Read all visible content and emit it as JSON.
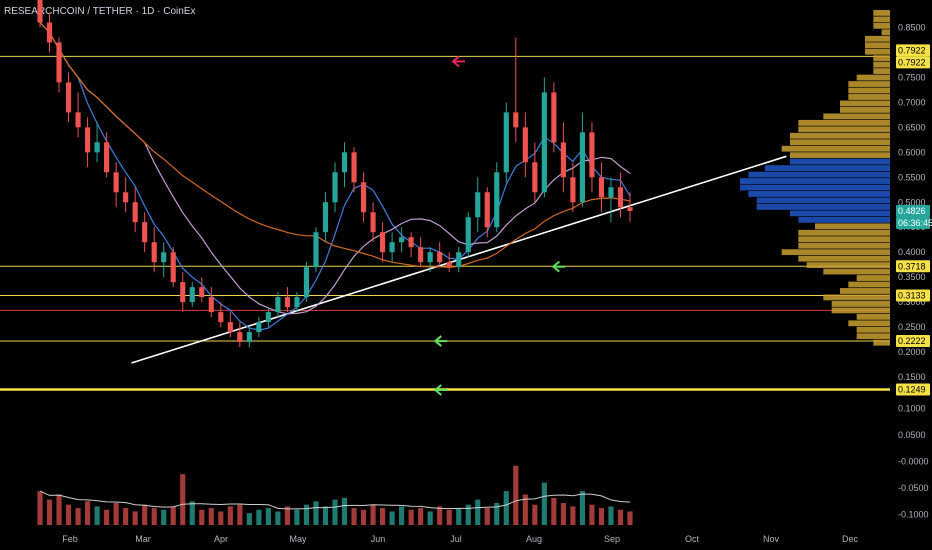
{
  "header": {
    "symbol_line": "RESEARCHCOIN / TETHER · 1D · CoinEx"
  },
  "chart_data": {
    "type": "candlestick",
    "title": "RESEARCHCOIN / TETHER · 1D · CoinEx",
    "y_axis_price": {
      "ticks": [
        0.85,
        0.8,
        0.75,
        0.7,
        0.65,
        0.6,
        0.55,
        0.5,
        0.45,
        0.4,
        0.35,
        0.3,
        0.25,
        0.2,
        0.15
      ],
      "labels": [
        "0.8500",
        "0.8000",
        "0.7500",
        "0.7000",
        "0.6500",
        "0.6000",
        "0.5500",
        "0.5000",
        "0.4500",
        "0.4000",
        "0.3500",
        "0.3000",
        "0.2500",
        "0.2000",
        "0.1500"
      ],
      "range": [
        0.108,
        0.885
      ]
    },
    "y_axis_volume": {
      "ticks": [
        0.1,
        0.05,
        0.0,
        -0.05,
        -0.1
      ],
      "labels": [
        "0.1000",
        "0.0500",
        "-0.0000",
        "-0.0500",
        "-0.1000"
      ],
      "range": [
        -0.12,
        0.12
      ]
    },
    "x_axis": {
      "labels": [
        "Feb",
        "Mar",
        "Apr",
        "May",
        "Jun",
        "Jul",
        "Aug",
        "Sep",
        "Oct",
        "Nov",
        "Dec"
      ]
    },
    "price_tags": [
      {
        "label": "0.7922",
        "value": 0.7922,
        "bg": "#f5e146",
        "fg": "#000000"
      },
      {
        "label": "0.7922",
        "value": 0.7922,
        "bg": "#f5e146",
        "fg": "#000000"
      },
      {
        "label": "0.4826",
        "value": 0.4826,
        "bg": "#26a69a",
        "fg": "#ffffff"
      },
      {
        "label": "06:36:45",
        "value": 0.466,
        "bg": "#26a69a",
        "fg": "#ffffff"
      },
      {
        "label": "0.3718",
        "value": 0.3718,
        "bg": "#f5e146",
        "fg": "#000000"
      },
      {
        "label": "0.3133",
        "value": 0.3133,
        "bg": "#f5e146",
        "fg": "#000000"
      },
      {
        "label": "0.2222",
        "value": 0.2222,
        "bg": "#f5e146",
        "fg": "#000000"
      },
      {
        "label": "0.1249",
        "value": 0.1249,
        "bg": "#f5e146",
        "fg": "#000000"
      }
    ],
    "horizontal_levels": [
      {
        "value": 0.7922,
        "color": "#e8d44d"
      },
      {
        "value": 0.3718,
        "color": "#e8d44d"
      },
      {
        "value": 0.3133,
        "color": "#e8d44d"
      },
      {
        "value": 0.2834,
        "color": "#e53935"
      },
      {
        "value": 0.2222,
        "color": "#e8d44d"
      },
      {
        "value": 0.1249,
        "color": "#f5e146"
      }
    ],
    "candles": [
      [
        0.92,
        0.94,
        0.85,
        0.86
      ],
      [
        0.86,
        0.88,
        0.8,
        0.82
      ],
      [
        0.82,
        0.83,
        0.72,
        0.74
      ],
      [
        0.74,
        0.76,
        0.66,
        0.68
      ],
      [
        0.68,
        0.72,
        0.63,
        0.65
      ],
      [
        0.65,
        0.67,
        0.57,
        0.6
      ],
      [
        0.6,
        0.66,
        0.58,
        0.62
      ],
      [
        0.62,
        0.64,
        0.55,
        0.56
      ],
      [
        0.56,
        0.58,
        0.49,
        0.52
      ],
      [
        0.52,
        0.55,
        0.48,
        0.5
      ],
      [
        0.5,
        0.53,
        0.44,
        0.46
      ],
      [
        0.46,
        0.48,
        0.4,
        0.42
      ],
      [
        0.42,
        0.45,
        0.36,
        0.38
      ],
      [
        0.38,
        0.42,
        0.35,
        0.4
      ],
      [
        0.4,
        0.41,
        0.33,
        0.34
      ],
      [
        0.34,
        0.36,
        0.28,
        0.3
      ],
      [
        0.3,
        0.34,
        0.29,
        0.33
      ],
      [
        0.33,
        0.35,
        0.3,
        0.31
      ],
      [
        0.31,
        0.33,
        0.27,
        0.28
      ],
      [
        0.28,
        0.3,
        0.25,
        0.26
      ],
      [
        0.26,
        0.28,
        0.23,
        0.24
      ],
      [
        0.24,
        0.26,
        0.21,
        0.22
      ],
      [
        0.22,
        0.25,
        0.21,
        0.24
      ],
      [
        0.24,
        0.27,
        0.23,
        0.26
      ],
      [
        0.26,
        0.29,
        0.25,
        0.28
      ],
      [
        0.28,
        0.32,
        0.27,
        0.31
      ],
      [
        0.31,
        0.33,
        0.28,
        0.29
      ],
      [
        0.29,
        0.32,
        0.28,
        0.31
      ],
      [
        0.31,
        0.38,
        0.3,
        0.37
      ],
      [
        0.37,
        0.45,
        0.36,
        0.44
      ],
      [
        0.44,
        0.52,
        0.42,
        0.5
      ],
      [
        0.5,
        0.58,
        0.48,
        0.56
      ],
      [
        0.56,
        0.62,
        0.53,
        0.6
      ],
      [
        0.6,
        0.61,
        0.52,
        0.54
      ],
      [
        0.54,
        0.56,
        0.46,
        0.48
      ],
      [
        0.48,
        0.5,
        0.42,
        0.44
      ],
      [
        0.44,
        0.46,
        0.38,
        0.4
      ],
      [
        0.4,
        0.44,
        0.38,
        0.42
      ],
      [
        0.42,
        0.45,
        0.4,
        0.43
      ],
      [
        0.43,
        0.44,
        0.39,
        0.41
      ],
      [
        0.41,
        0.43,
        0.37,
        0.38
      ],
      [
        0.38,
        0.41,
        0.36,
        0.4
      ],
      [
        0.4,
        0.42,
        0.37,
        0.38
      ],
      [
        0.38,
        0.4,
        0.36,
        0.37
      ],
      [
        0.37,
        0.41,
        0.36,
        0.4
      ],
      [
        0.4,
        0.48,
        0.39,
        0.47
      ],
      [
        0.47,
        0.55,
        0.44,
        0.52
      ],
      [
        0.52,
        0.53,
        0.43,
        0.45
      ],
      [
        0.45,
        0.58,
        0.44,
        0.56
      ],
      [
        0.56,
        0.7,
        0.54,
        0.68
      ],
      [
        0.68,
        0.83,
        0.62,
        0.65
      ],
      [
        0.65,
        0.68,
        0.55,
        0.58
      ],
      [
        0.58,
        0.62,
        0.5,
        0.52
      ],
      [
        0.52,
        0.75,
        0.51,
        0.72
      ],
      [
        0.72,
        0.74,
        0.6,
        0.62
      ],
      [
        0.62,
        0.66,
        0.52,
        0.55
      ],
      [
        0.55,
        0.58,
        0.48,
        0.5
      ],
      [
        0.5,
        0.68,
        0.49,
        0.64
      ],
      [
        0.64,
        0.66,
        0.52,
        0.55
      ],
      [
        0.55,
        0.58,
        0.48,
        0.51
      ],
      [
        0.51,
        0.55,
        0.46,
        0.53
      ],
      [
        0.53,
        0.56,
        0.47,
        0.49
      ],
      [
        0.49,
        0.52,
        0.46,
        0.4826
      ]
    ],
    "volume": [
      0.02,
      0.015,
      0.018,
      0.012,
      0.01,
      0.014,
      0.011,
      0.009,
      0.013,
      0.01,
      0.008,
      0.012,
      0.01,
      0.009,
      0.011,
      0.03,
      0.014,
      0.009,
      0.01,
      0.008,
      0.011,
      0.012,
      0.007,
      0.009,
      0.01,
      0.008,
      0.011,
      0.009,
      0.012,
      0.014,
      0.011,
      0.015,
      0.016,
      0.01,
      0.009,
      0.012,
      0.01,
      0.008,
      0.011,
      0.009,
      0.01,
      0.008,
      0.011,
      0.009,
      0.01,
      0.012,
      0.015,
      0.01,
      0.013,
      0.02,
      0.035,
      0.018,
      0.012,
      0.025,
      0.016,
      0.013,
      0.011,
      0.02,
      0.012,
      0.01,
      0.011,
      0.009,
      0.008
    ],
    "trendline": {
      "from": [
        0.05,
        0.178
      ],
      "to": [
        1.15,
        0.592
      ],
      "color": "#ffffff"
    },
    "annotations": [
      {
        "type": "arrow-left",
        "color": "#e91e63",
        "at": [
          0.7,
          0.782
        ]
      },
      {
        "type": "arrow-left",
        "color": "#5ee05e",
        "at": [
          0.87,
          0.371
        ]
      },
      {
        "type": "arrow-left",
        "color": "#5ee05e",
        "at": [
          0.67,
          0.222
        ]
      },
      {
        "type": "arrow-left",
        "color": "#5ee05e",
        "at": [
          0.67,
          0.124
        ]
      }
    ]
  }
}
